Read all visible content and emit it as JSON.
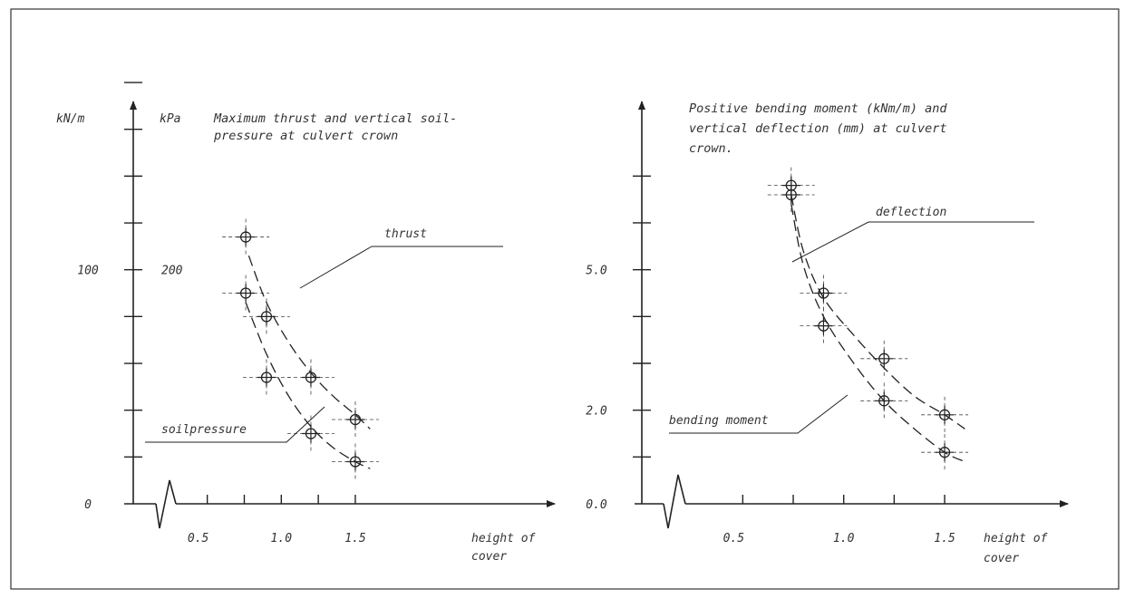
{
  "chart_data": [
    {
      "type": "line",
      "title_lines": [
        "Maximum thrust and vertical soil-",
        "pressure at culvert crown"
      ],
      "y_units": [
        "kN/m",
        "kPa"
      ],
      "y_ticks_left": [
        {
          "value": 0,
          "label": "0"
        },
        {
          "value": 100,
          "label": "100"
        }
      ],
      "y_ticks_right": [
        {
          "value": 100,
          "label": "200"
        }
      ],
      "ylim": [
        0,
        200
      ],
      "xlim": [
        0,
        1.8
      ],
      "x_ticks": [
        {
          "value": 0.5,
          "label": "0.5"
        },
        {
          "value": 1.0,
          "label": "1.0"
        },
        {
          "value": 1.5,
          "label": "1.5"
        }
      ],
      "xlabel_lines": [
        "height of",
        "cover"
      ],
      "series": [
        {
          "name": "thrust",
          "points": [
            [
              0.76,
              114
            ],
            [
              0.9,
              80
            ],
            [
              1.2,
              54
            ],
            [
              1.5,
              36
            ]
          ],
          "fit": [
            [
              0.78,
              106
            ],
            [
              0.9,
              86
            ],
            [
              1.05,
              69
            ],
            [
              1.2,
              56
            ],
            [
              1.35,
              46
            ],
            [
              1.5,
              38
            ],
            [
              1.6,
              32
            ]
          ]
        },
        {
          "name": "soilpressure",
          "points": [
            [
              0.76,
              90
            ],
            [
              0.9,
              54
            ],
            [
              1.2,
              30
            ],
            [
              1.5,
              18
            ]
          ],
          "fit": [
            [
              0.76,
              86
            ],
            [
              0.9,
              64
            ],
            [
              1.05,
              46
            ],
            [
              1.2,
              33
            ],
            [
              1.35,
              24
            ],
            [
              1.5,
              18
            ],
            [
              1.6,
              15
            ]
          ]
        }
      ]
    },
    {
      "type": "line",
      "title_lines": [
        "Positive bending moment (kNm/m) and",
        "vertical deflection (mm) at culvert",
        "crown."
      ],
      "y_ticks_left": [
        {
          "value": 0,
          "label": "0.0"
        },
        {
          "value": 2,
          "label": "2.0"
        },
        {
          "value": 5,
          "label": "5.0"
        }
      ],
      "ylim": [
        0,
        8
      ],
      "xlim": [
        0,
        1.8
      ],
      "x_ticks": [
        {
          "value": 0.5,
          "label": "0.5"
        },
        {
          "value": 1.0,
          "label": "1.0"
        },
        {
          "value": 1.5,
          "label": "1.5"
        }
      ],
      "xlabel_lines": [
        "height of",
        "cover"
      ],
      "series": [
        {
          "name": "deflection",
          "points": [
            [
              0.74,
              6.8
            ],
            [
              0.9,
              4.5
            ],
            [
              1.2,
              3.1
            ],
            [
              1.5,
              1.9
            ]
          ],
          "fit": [
            [
              0.74,
              6.6
            ],
            [
              0.8,
              5.4
            ],
            [
              0.9,
              4.4
            ],
            [
              1.05,
              3.6
            ],
            [
              1.2,
              2.9
            ],
            [
              1.35,
              2.3
            ],
            [
              1.5,
              1.9
            ],
            [
              1.6,
              1.6
            ]
          ]
        },
        {
          "name": "bending moment",
          "points": [
            [
              0.74,
              6.6
            ],
            [
              0.9,
              3.8
            ],
            [
              1.2,
              2.2
            ],
            [
              1.5,
              1.1
            ]
          ],
          "fit": [
            [
              0.74,
              6.4
            ],
            [
              0.8,
              5.1
            ],
            [
              0.9,
              4.0
            ],
            [
              1.05,
              3.0
            ],
            [
              1.2,
              2.2
            ],
            [
              1.35,
              1.6
            ],
            [
              1.5,
              1.1
            ],
            [
              1.6,
              0.9
            ]
          ]
        }
      ]
    }
  ]
}
